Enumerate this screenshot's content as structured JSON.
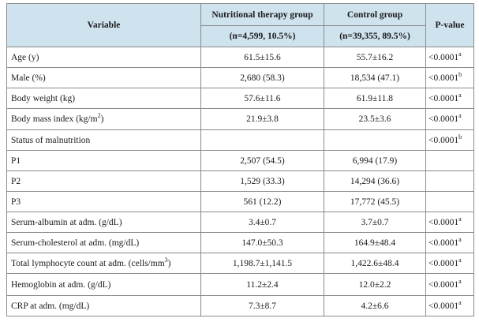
{
  "headers": {
    "variable": "Variable",
    "group1": "Nutritional therapy group",
    "group1_n": "(n=4,599, 10.5%)",
    "group2": "Control group",
    "group2_n": "(n=39,355, 89.5%)",
    "pvalue": "P-value"
  },
  "rows": [
    {
      "label": "Age (y)",
      "label_sup": "",
      "label_suffix": "",
      "g1": "61.5±15.6",
      "g2": "55.7±16.2",
      "p": "<0.0001",
      "p_sup": "a"
    },
    {
      "label": "Male (%)",
      "label_sup": "",
      "label_suffix": "",
      "g1": "2,680 (58.3)",
      "g2": "18,534 (47.1)",
      "p": "<0.0001",
      "p_sup": "b"
    },
    {
      "label": "Body weight (kg)",
      "label_sup": "",
      "label_suffix": "",
      "g1": "57.6±11.6",
      "g2": "61.9±11.8",
      "p": "<0.0001",
      "p_sup": "a"
    },
    {
      "label": "Body mass index (kg/m",
      "label_sup": "2",
      "label_suffix": ")",
      "g1": "21.9±3.8",
      "g2": "23.5±3.6",
      "p": "<0.0001",
      "p_sup": "a"
    },
    {
      "label": "Status of malnutrition",
      "label_sup": "",
      "label_suffix": "",
      "g1": "",
      "g2": "",
      "p": "<0.0001",
      "p_sup": "b"
    },
    {
      "label": "P1",
      "label_sup": "",
      "label_suffix": "",
      "g1": "2,507 (54.5)",
      "g2": "6,994 (17.9)",
      "p": "",
      "p_sup": ""
    },
    {
      "label": "P2",
      "label_sup": "",
      "label_suffix": "",
      "g1": "1,529 (33.3)",
      "g2": "14,294 (36.6)",
      "p": "",
      "p_sup": ""
    },
    {
      "label": "P3",
      "label_sup": "",
      "label_suffix": "",
      "g1": "561 (12.2)",
      "g2": "17,772 (45.5)",
      "p": "",
      "p_sup": ""
    },
    {
      "label": "Serum-albumin at adm. (g/dL)",
      "label_sup": "",
      "label_suffix": "",
      "g1": "3.4±0.7",
      "g2": "3.7±0.7",
      "p": "<0.0001",
      "p_sup": "a"
    },
    {
      "label": "Serum-cholesterol at adm. (mg/dL)",
      "label_sup": "",
      "label_suffix": "",
      "g1": "147.0±50.3",
      "g2": "164.9±48.4",
      "p": "<0.0001",
      "p_sup": "a"
    },
    {
      "label": "Total lymphocyte count at adm. (cells/mm",
      "label_sup": "3",
      "label_suffix": ")",
      "g1": "1,198.7±1,141.5",
      "g2": "1,422.6±48.4",
      "p": "<0.0001",
      "p_sup": "a"
    },
    {
      "label": "Hemoglobin at adm. (g/dL)",
      "label_sup": "",
      "label_suffix": "",
      "g1": "11.2±2.4",
      "g2": "12.0±2.2",
      "p": "<0.0001",
      "p_sup": "a"
    },
    {
      "label": "CRP at adm. (mg/dL)",
      "label_sup": "",
      "label_suffix": "",
      "g1": "7.3±8.7",
      "g2": "4.2±6.6",
      "p": "<0.0001",
      "p_sup": "a"
    }
  ]
}
